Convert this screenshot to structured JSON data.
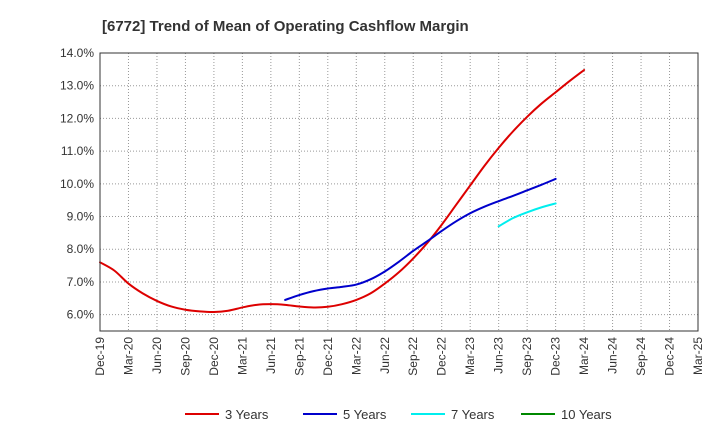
{
  "chart_data": {
    "type": "line",
    "title": "[6772]  Trend of Mean of Operating Cashflow Margin",
    "xlabel": "",
    "ylabel": "",
    "ylim": [
      5.5,
      14.0
    ],
    "y_ticks": [
      "6.0%",
      "7.0%",
      "8.0%",
      "9.0%",
      "10.0%",
      "11.0%",
      "12.0%",
      "13.0%",
      "14.0%"
    ],
    "y_tick_values": [
      6,
      7,
      8,
      9,
      10,
      11,
      12,
      13,
      14
    ],
    "x_tick_labels": [
      "Dec-19",
      "Mar-20",
      "Jun-20",
      "Sep-20",
      "Dec-20",
      "Mar-21",
      "Jun-21",
      "Sep-21",
      "Dec-21",
      "Mar-22",
      "Jun-22",
      "Sep-22",
      "Dec-22",
      "Mar-23",
      "Jun-23",
      "Sep-23",
      "Dec-23",
      "Mar-24",
      "Jun-24",
      "Sep-24",
      "Dec-24",
      "Mar-25"
    ],
    "grid": true,
    "legend_position": "bottom",
    "series": [
      {
        "name": "3 Years",
        "color": "#dd0000",
        "points": [
          [
            0,
            7.6
          ],
          [
            0.5,
            7.35
          ],
          [
            1,
            6.95
          ],
          [
            1.5,
            6.65
          ],
          [
            2,
            6.42
          ],
          [
            2.5,
            6.25
          ],
          [
            3,
            6.15
          ],
          [
            3.5,
            6.1
          ],
          [
            4,
            6.08
          ],
          [
            4.5,
            6.12
          ],
          [
            5,
            6.22
          ],
          [
            5.5,
            6.3
          ],
          [
            6,
            6.32
          ],
          [
            6.5,
            6.3
          ],
          [
            7,
            6.25
          ],
          [
            7.5,
            6.22
          ],
          [
            8,
            6.24
          ],
          [
            8.5,
            6.32
          ],
          [
            9,
            6.45
          ],
          [
            9.5,
            6.65
          ],
          [
            10,
            6.95
          ],
          [
            10.5,
            7.3
          ],
          [
            11,
            7.72
          ],
          [
            11.5,
            8.2
          ],
          [
            12,
            8.75
          ],
          [
            12.5,
            9.35
          ],
          [
            13,
            9.95
          ],
          [
            13.5,
            10.55
          ],
          [
            14,
            11.1
          ],
          [
            14.5,
            11.6
          ],
          [
            15,
            12.05
          ],
          [
            15.5,
            12.45
          ],
          [
            16,
            12.8
          ],
          [
            16.5,
            13.15
          ],
          [
            17,
            13.48
          ]
        ]
      },
      {
        "name": "5 Years",
        "color": "#0000cc",
        "points": [
          [
            6.5,
            6.45
          ],
          [
            7,
            6.6
          ],
          [
            7.5,
            6.72
          ],
          [
            8,
            6.8
          ],
          [
            8.5,
            6.85
          ],
          [
            9,
            6.92
          ],
          [
            9.5,
            7.08
          ],
          [
            10,
            7.32
          ],
          [
            10.5,
            7.62
          ],
          [
            11,
            7.95
          ],
          [
            11.5,
            8.25
          ],
          [
            12,
            8.56
          ],
          [
            12.5,
            8.85
          ],
          [
            13,
            9.1
          ],
          [
            13.5,
            9.3
          ],
          [
            14,
            9.47
          ],
          [
            14.5,
            9.63
          ],
          [
            15,
            9.8
          ],
          [
            15.5,
            9.97
          ],
          [
            16,
            10.15
          ]
        ]
      },
      {
        "name": "7 Years",
        "color": "#00eeee",
        "points": [
          [
            14,
            8.7
          ],
          [
            14.5,
            8.95
          ],
          [
            15,
            9.13
          ],
          [
            15.5,
            9.28
          ],
          [
            16,
            9.4
          ]
        ]
      },
      {
        "name": "10 Years",
        "color": "#008800",
        "points": []
      }
    ]
  }
}
